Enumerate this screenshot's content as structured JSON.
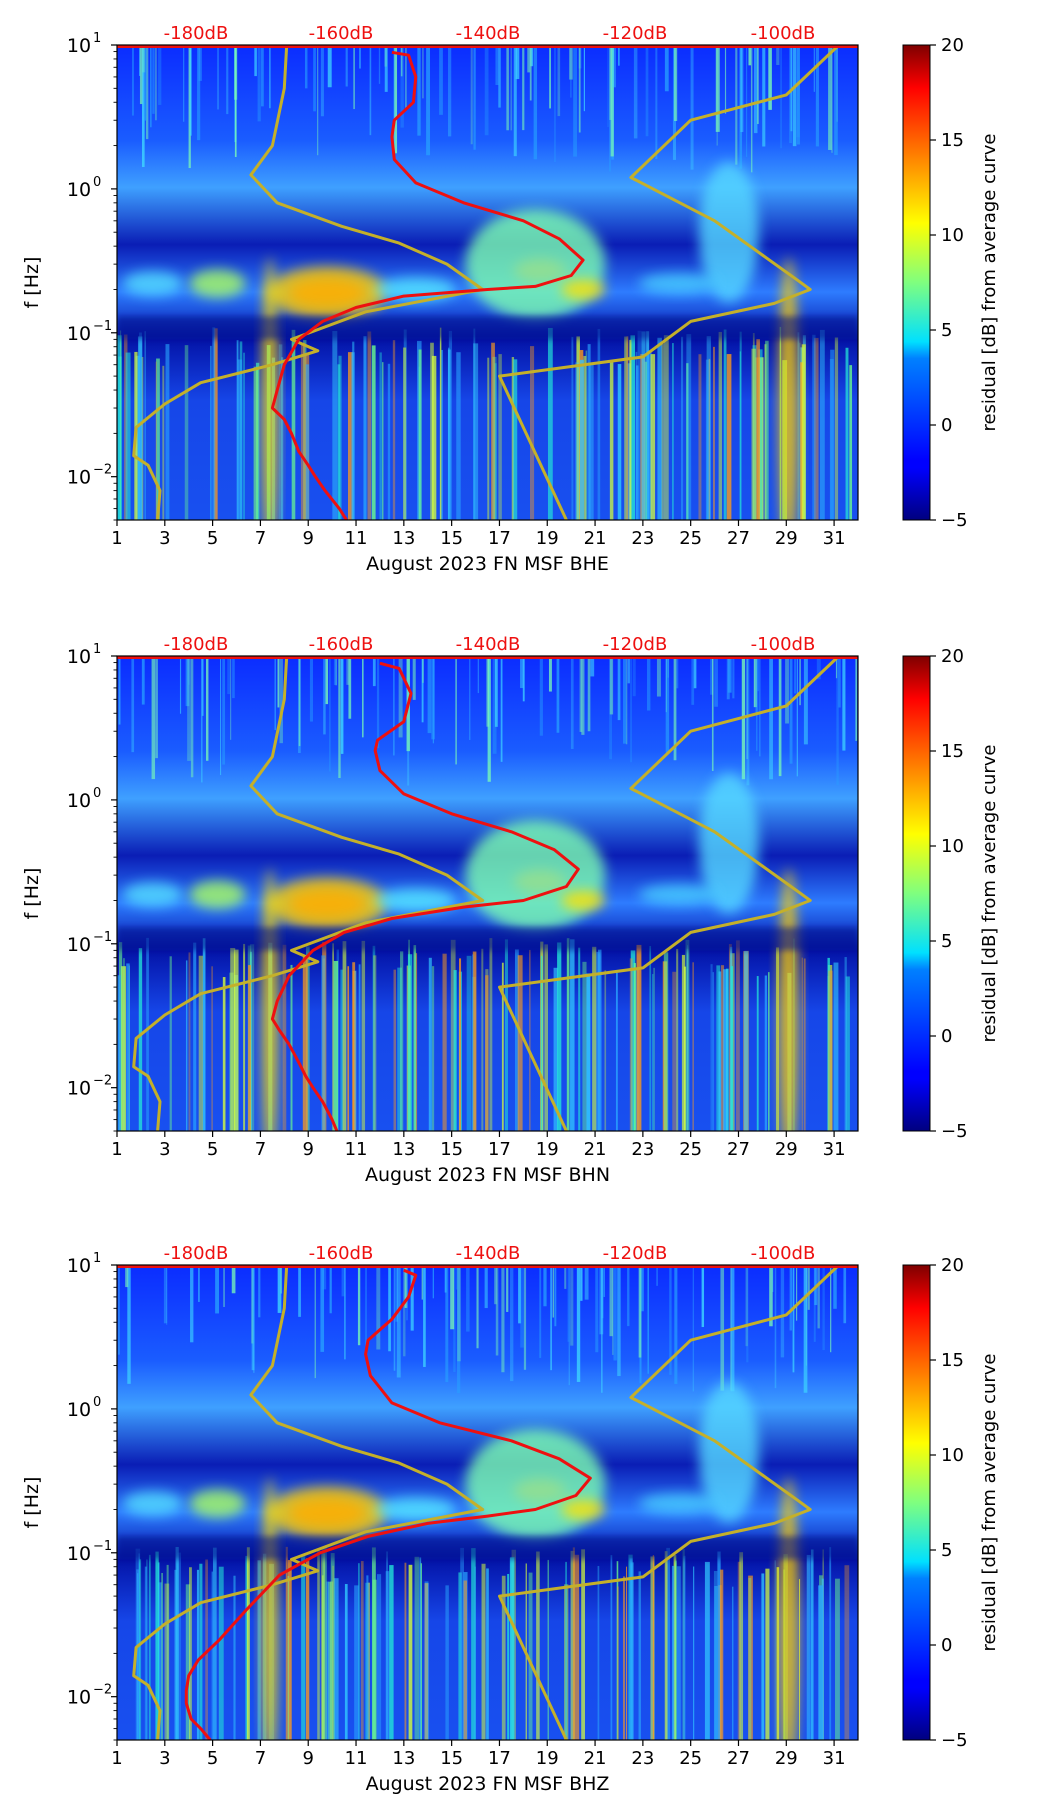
{
  "chart_data": [
    {
      "type": "heatmap",
      "title": "",
      "xlabel": "August 2023 FN MSF  BHE",
      "ylabel": "f [Hz]",
      "xlim": [
        1,
        32
      ],
      "ylim": [
        0.005,
        10
      ],
      "y_scale": "log",
      "x_ticks": [
        "1",
        "3",
        "5",
        "7",
        "9",
        "11",
        "13",
        "15",
        "17",
        "19",
        "21",
        "23",
        "25",
        "27",
        "29",
        "31"
      ],
      "y_ticks": [
        {
          "label_base": "10",
          "label_exp": "−2",
          "value": 0.01
        },
        {
          "label_base": "10",
          "label_exp": "−1",
          "value": 0.1
        },
        {
          "label_base": "10",
          "label_exp": "0",
          "value": 1
        },
        {
          "label_base": "10",
          "label_exp": "1",
          "value": 10
        }
      ],
      "top_labels": [
        "-180dB",
        "-160dB",
        "-140dB",
        "-120dB",
        "-100dB"
      ],
      "colorbar": {
        "label": "residual [dB] from average curve",
        "range": [
          -5,
          20
        ],
        "ticks": [
          "20",
          "15",
          "10",
          "5",
          "0",
          "−5"
        ]
      },
      "noise_model_low": [
        [
          8.1,
          10
        ],
        [
          8.0,
          5
        ],
        [
          7.5,
          2
        ],
        [
          6.6,
          1.25
        ],
        [
          7.7,
          0.8
        ],
        [
          10.4,
          0.55
        ],
        [
          12.8,
          0.42
        ],
        [
          14.8,
          0.3
        ],
        [
          16.3,
          0.2
        ],
        [
          11.4,
          0.14
        ],
        [
          8.3,
          0.09
        ],
        [
          9.4,
          0.075
        ],
        [
          7.5,
          0.06
        ],
        [
          4.5,
          0.045
        ],
        [
          3,
          0.032
        ],
        [
          1.8,
          0.022
        ],
        [
          1.7,
          0.014
        ],
        [
          2.3,
          0.012
        ],
        [
          2.8,
          0.008
        ],
        [
          2.7,
          0.005
        ]
      ],
      "noise_model_high": [
        [
          31.2,
          10
        ],
        [
          29,
          4.5
        ],
        [
          25,
          3
        ],
        [
          22.5,
          1.2
        ],
        [
          26,
          0.6
        ],
        [
          29.5,
          0.23
        ],
        [
          30,
          0.2
        ],
        [
          28.5,
          0.16
        ],
        [
          25,
          0.12
        ],
        [
          23,
          0.068
        ],
        [
          17,
          0.05
        ],
        [
          19.8,
          0.005
        ]
      ],
      "median_psd": [
        [
          12.5,
          8.9
        ],
        [
          13.2,
          8.5
        ],
        [
          13.5,
          6
        ],
        [
          13.4,
          4
        ],
        [
          12.6,
          3
        ],
        [
          12.5,
          2.3
        ],
        [
          12.6,
          1.6
        ],
        [
          13.5,
          1.1
        ],
        [
          15.5,
          0.8
        ],
        [
          18,
          0.6
        ],
        [
          19.5,
          0.45
        ],
        [
          20.5,
          0.32
        ],
        [
          20,
          0.25
        ],
        [
          18.5,
          0.21
        ],
        [
          16.5,
          0.2
        ],
        [
          13,
          0.18
        ],
        [
          11,
          0.15
        ],
        [
          9.6,
          0.12
        ],
        [
          8.6,
          0.09
        ],
        [
          8,
          0.06
        ],
        [
          7.7,
          0.04
        ],
        [
          7.5,
          0.03
        ],
        [
          8,
          0.025
        ],
        [
          8.3,
          0.02
        ],
        [
          8.6,
          0.015
        ],
        [
          9,
          0.012
        ],
        [
          9.3,
          0.01
        ],
        [
          9.7,
          0.008
        ],
        [
          10.3,
          0.006
        ],
        [
          10.6,
          0.005
        ]
      ]
    },
    {
      "type": "heatmap",
      "title": "",
      "xlabel": "August 2023 FN MSF  BHN",
      "ylabel": "f [Hz]",
      "xlim": [
        1,
        32
      ],
      "ylim": [
        0.005,
        10
      ],
      "y_scale": "log",
      "x_ticks": [
        "1",
        "3",
        "5",
        "7",
        "9",
        "11",
        "13",
        "15",
        "17",
        "19",
        "21",
        "23",
        "25",
        "27",
        "29",
        "31"
      ],
      "y_ticks": [
        {
          "label_base": "10",
          "label_exp": "−2",
          "value": 0.01
        },
        {
          "label_base": "10",
          "label_exp": "−1",
          "value": 0.1
        },
        {
          "label_base": "10",
          "label_exp": "0",
          "value": 1
        },
        {
          "label_base": "10",
          "label_exp": "1",
          "value": 10
        }
      ],
      "top_labels": [
        "-180dB",
        "-160dB",
        "-140dB",
        "-120dB",
        "-100dB"
      ],
      "colorbar": {
        "label": "residual [dB] from average curve",
        "range": [
          -5,
          20
        ],
        "ticks": [
          "20",
          "15",
          "10",
          "5",
          "0",
          "−5"
        ]
      },
      "noise_model_low": [
        [
          8.1,
          10
        ],
        [
          8.0,
          5
        ],
        [
          7.5,
          2
        ],
        [
          6.6,
          1.25
        ],
        [
          7.7,
          0.8
        ],
        [
          10.4,
          0.55
        ],
        [
          12.8,
          0.42
        ],
        [
          14.8,
          0.3
        ],
        [
          16.3,
          0.2
        ],
        [
          11.4,
          0.14
        ],
        [
          8.3,
          0.09
        ],
        [
          9.4,
          0.075
        ],
        [
          7.5,
          0.06
        ],
        [
          4.5,
          0.045
        ],
        [
          3,
          0.032
        ],
        [
          1.8,
          0.022
        ],
        [
          1.7,
          0.014
        ],
        [
          2.3,
          0.012
        ],
        [
          2.8,
          0.008
        ],
        [
          2.7,
          0.005
        ]
      ],
      "noise_model_high": [
        [
          31.2,
          10
        ],
        [
          29,
          4.5
        ],
        [
          25,
          3
        ],
        [
          22.5,
          1.2
        ],
        [
          26,
          0.6
        ],
        [
          29.5,
          0.23
        ],
        [
          30,
          0.2
        ],
        [
          28.5,
          0.16
        ],
        [
          25,
          0.12
        ],
        [
          23,
          0.068
        ],
        [
          17,
          0.05
        ],
        [
          19.8,
          0.005
        ]
      ],
      "median_psd": [
        [
          12,
          8.9
        ],
        [
          12.8,
          8.2
        ],
        [
          13.3,
          5.5
        ],
        [
          13,
          3.5
        ],
        [
          11.9,
          2.6
        ],
        [
          11.8,
          2.2
        ],
        [
          12,
          1.6
        ],
        [
          13,
          1.1
        ],
        [
          15,
          0.8
        ],
        [
          17.5,
          0.6
        ],
        [
          19.3,
          0.45
        ],
        [
          20.3,
          0.33
        ],
        [
          19.8,
          0.25
        ],
        [
          18,
          0.2
        ],
        [
          15.5,
          0.18
        ],
        [
          12.5,
          0.15
        ],
        [
          10.5,
          0.12
        ],
        [
          9.2,
          0.09
        ],
        [
          8.2,
          0.06
        ],
        [
          7.7,
          0.04
        ],
        [
          7.5,
          0.03
        ],
        [
          7.8,
          0.025
        ],
        [
          8.2,
          0.02
        ],
        [
          8.6,
          0.015
        ],
        [
          8.9,
          0.012
        ],
        [
          9.2,
          0.01
        ],
        [
          9.6,
          0.008
        ],
        [
          10,
          0.006
        ],
        [
          10.2,
          0.005
        ]
      ]
    },
    {
      "type": "heatmap",
      "title": "",
      "xlabel": "August 2023 FN MSF  BHZ",
      "ylabel": "f [Hz]",
      "xlim": [
        1,
        32
      ],
      "ylim": [
        0.005,
        10
      ],
      "y_scale": "log",
      "x_ticks": [
        "1",
        "3",
        "5",
        "7",
        "9",
        "11",
        "13",
        "15",
        "17",
        "19",
        "21",
        "23",
        "25",
        "27",
        "29",
        "31"
      ],
      "y_ticks": [
        {
          "label_base": "10",
          "label_exp": "−2",
          "value": 0.01
        },
        {
          "label_base": "10",
          "label_exp": "−1",
          "value": 0.1
        },
        {
          "label_base": "10",
          "label_exp": "0",
          "value": 1
        },
        {
          "label_base": "10",
          "label_exp": "1",
          "value": 10
        }
      ],
      "top_labels": [
        "-180dB",
        "-160dB",
        "-140dB",
        "-120dB",
        "-100dB"
      ],
      "colorbar": {
        "label": "residual [dB] from average curve",
        "range": [
          -5,
          20
        ],
        "ticks": [
          "20",
          "15",
          "10",
          "5",
          "0",
          "−5"
        ]
      },
      "noise_model_low": [
        [
          8.1,
          10
        ],
        [
          8.0,
          5
        ],
        [
          7.5,
          2
        ],
        [
          6.6,
          1.25
        ],
        [
          7.7,
          0.8
        ],
        [
          10.4,
          0.55
        ],
        [
          12.8,
          0.42
        ],
        [
          14.8,
          0.3
        ],
        [
          16.3,
          0.2
        ],
        [
          11.4,
          0.14
        ],
        [
          8.3,
          0.09
        ],
        [
          9.4,
          0.075
        ],
        [
          7.5,
          0.06
        ],
        [
          4.5,
          0.045
        ],
        [
          3,
          0.032
        ],
        [
          1.8,
          0.022
        ],
        [
          1.7,
          0.014
        ],
        [
          2.3,
          0.012
        ],
        [
          2.8,
          0.008
        ],
        [
          2.7,
          0.005
        ]
      ],
      "noise_model_high": [
        [
          31.2,
          10
        ],
        [
          29,
          4.5
        ],
        [
          25,
          3
        ],
        [
          22.5,
          1.2
        ],
        [
          26,
          0.6
        ],
        [
          29.5,
          0.23
        ],
        [
          30,
          0.2
        ],
        [
          28.5,
          0.16
        ],
        [
          25,
          0.12
        ],
        [
          23,
          0.068
        ],
        [
          17,
          0.05
        ],
        [
          19.8,
          0.005
        ]
      ],
      "median_psd": [
        [
          13,
          9.2
        ],
        [
          13.5,
          8.5
        ],
        [
          13.2,
          6
        ],
        [
          12.5,
          4.2
        ],
        [
          11.5,
          3
        ],
        [
          11.4,
          2.4
        ],
        [
          11.6,
          1.7
        ],
        [
          12.5,
          1.1
        ],
        [
          14.5,
          0.8
        ],
        [
          17.5,
          0.6
        ],
        [
          19.5,
          0.45
        ],
        [
          20.8,
          0.33
        ],
        [
          20.2,
          0.25
        ],
        [
          18.5,
          0.2
        ],
        [
          16.5,
          0.18
        ],
        [
          14,
          0.16
        ],
        [
          11.5,
          0.13
        ],
        [
          9.5,
          0.1
        ],
        [
          7.8,
          0.07
        ],
        [
          6.4,
          0.04
        ],
        [
          5.3,
          0.025
        ],
        [
          4.4,
          0.018
        ],
        [
          4,
          0.014
        ],
        [
          3.9,
          0.011
        ],
        [
          3.9,
          0.009
        ],
        [
          4.1,
          0.007
        ],
        [
          4.5,
          0.006
        ],
        [
          4.9,
          0.005
        ]
      ]
    }
  ]
}
